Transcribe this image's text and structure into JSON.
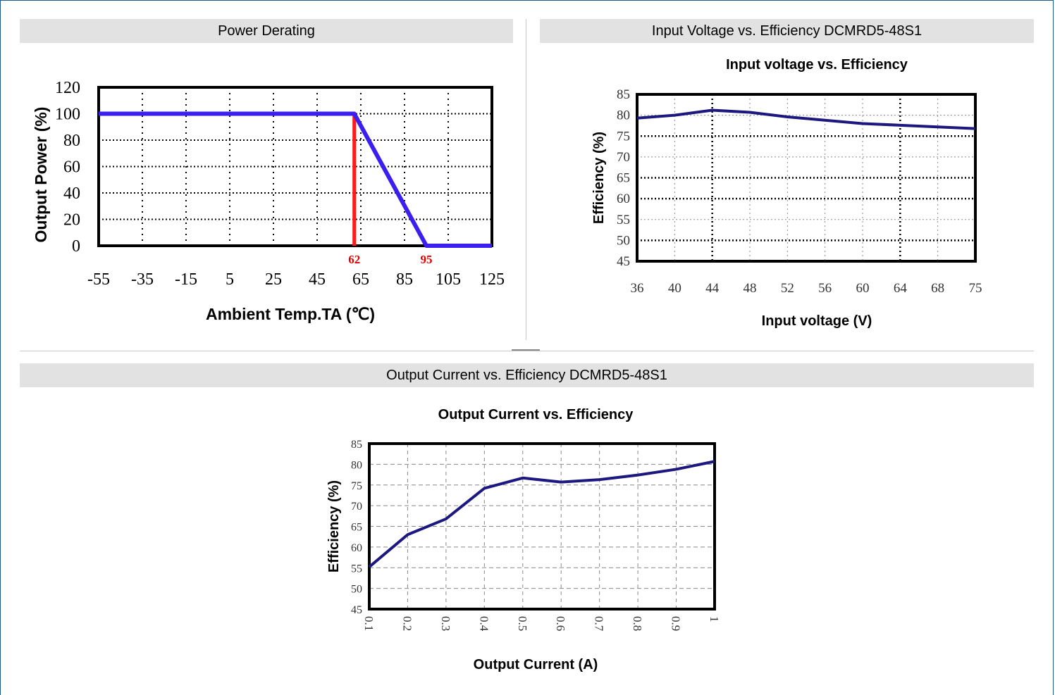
{
  "panels": {
    "derating": {
      "header": "Power Derating"
    },
    "vin": {
      "header": "Input Voltage vs. Efficiency DCMRD5-48S1"
    },
    "iout": {
      "header": "Output Current vs. Efficiency DCMRD5-48S1"
    }
  },
  "colors": {
    "line": "#3a1ff0",
    "marker": "#ff1a1a",
    "marker_text": "#e00000",
    "eff_line": "#1c1880",
    "header_bg": "#e2e2e2",
    "frame": "#1f5a8c"
  },
  "chart_data": [
    {
      "id": "derating",
      "type": "line",
      "title": "",
      "xlabel": "Ambient Temp.TA (℃)",
      "ylabel": "Output Power (%)",
      "x_ticks": [
        "-55",
        "-35",
        "-15",
        "5",
        "25",
        "45",
        "65",
        "85",
        "105",
        "125"
      ],
      "y_ticks": [
        "0",
        "20",
        "40",
        "60",
        "80",
        "100",
        "120"
      ],
      "xlim": [
        -55,
        125
      ],
      "ylim": [
        0,
        120
      ],
      "grid": true,
      "series": [
        {
          "x": [
            -55,
            62,
            95,
            125
          ],
          "y": [
            100,
            100,
            0,
            0
          ]
        }
      ],
      "annotations": [
        {
          "text": "62",
          "x": 62
        },
        {
          "text": "95",
          "x": 95
        }
      ]
    },
    {
      "id": "vin",
      "type": "line",
      "title": "Input voltage vs. Efficiency",
      "xlabel": "Input voltage (V)",
      "ylabel": "Efficiency (%)",
      "x_ticks": [
        "36",
        "40",
        "44",
        "48",
        "52",
        "56",
        "60",
        "64",
        "68",
        "75"
      ],
      "y_ticks": [
        "45",
        "50",
        "55",
        "60",
        "65",
        "70",
        "75",
        "80",
        "85"
      ],
      "ylim": [
        45,
        85
      ],
      "grid": true,
      "series": [
        {
          "x": [
            "36",
            "40",
            "44",
            "48",
            "52",
            "56",
            "60",
            "64",
            "68",
            "75"
          ],
          "y": [
            79.3,
            80.0,
            81.2,
            80.7,
            79.6,
            78.8,
            78.0,
            77.6,
            77.2,
            76.8
          ]
        }
      ]
    },
    {
      "id": "iout",
      "type": "line",
      "title": "Output Current vs. Efficiency",
      "xlabel": "Output Current (A)",
      "ylabel": "Efficiency (%)",
      "x_ticks": [
        "0.1",
        "0.2",
        "0.3",
        "0.4",
        "0.5",
        "0.6",
        "0.7",
        "0.8",
        "0.9",
        "1"
      ],
      "y_ticks": [
        "45",
        "50",
        "55",
        "60",
        "65",
        "70",
        "75",
        "80",
        "85"
      ],
      "ylim": [
        45,
        85
      ],
      "grid": true,
      "series": [
        {
          "x": [
            "0.1",
            "0.2",
            "0.3",
            "0.4",
            "0.5",
            "0.6",
            "0.7",
            "0.8",
            "0.9",
            "1"
          ],
          "y": [
            55.2,
            63.0,
            66.8,
            74.2,
            76.7,
            75.7,
            76.3,
            77.4,
            78.8,
            80.7
          ]
        }
      ]
    }
  ]
}
